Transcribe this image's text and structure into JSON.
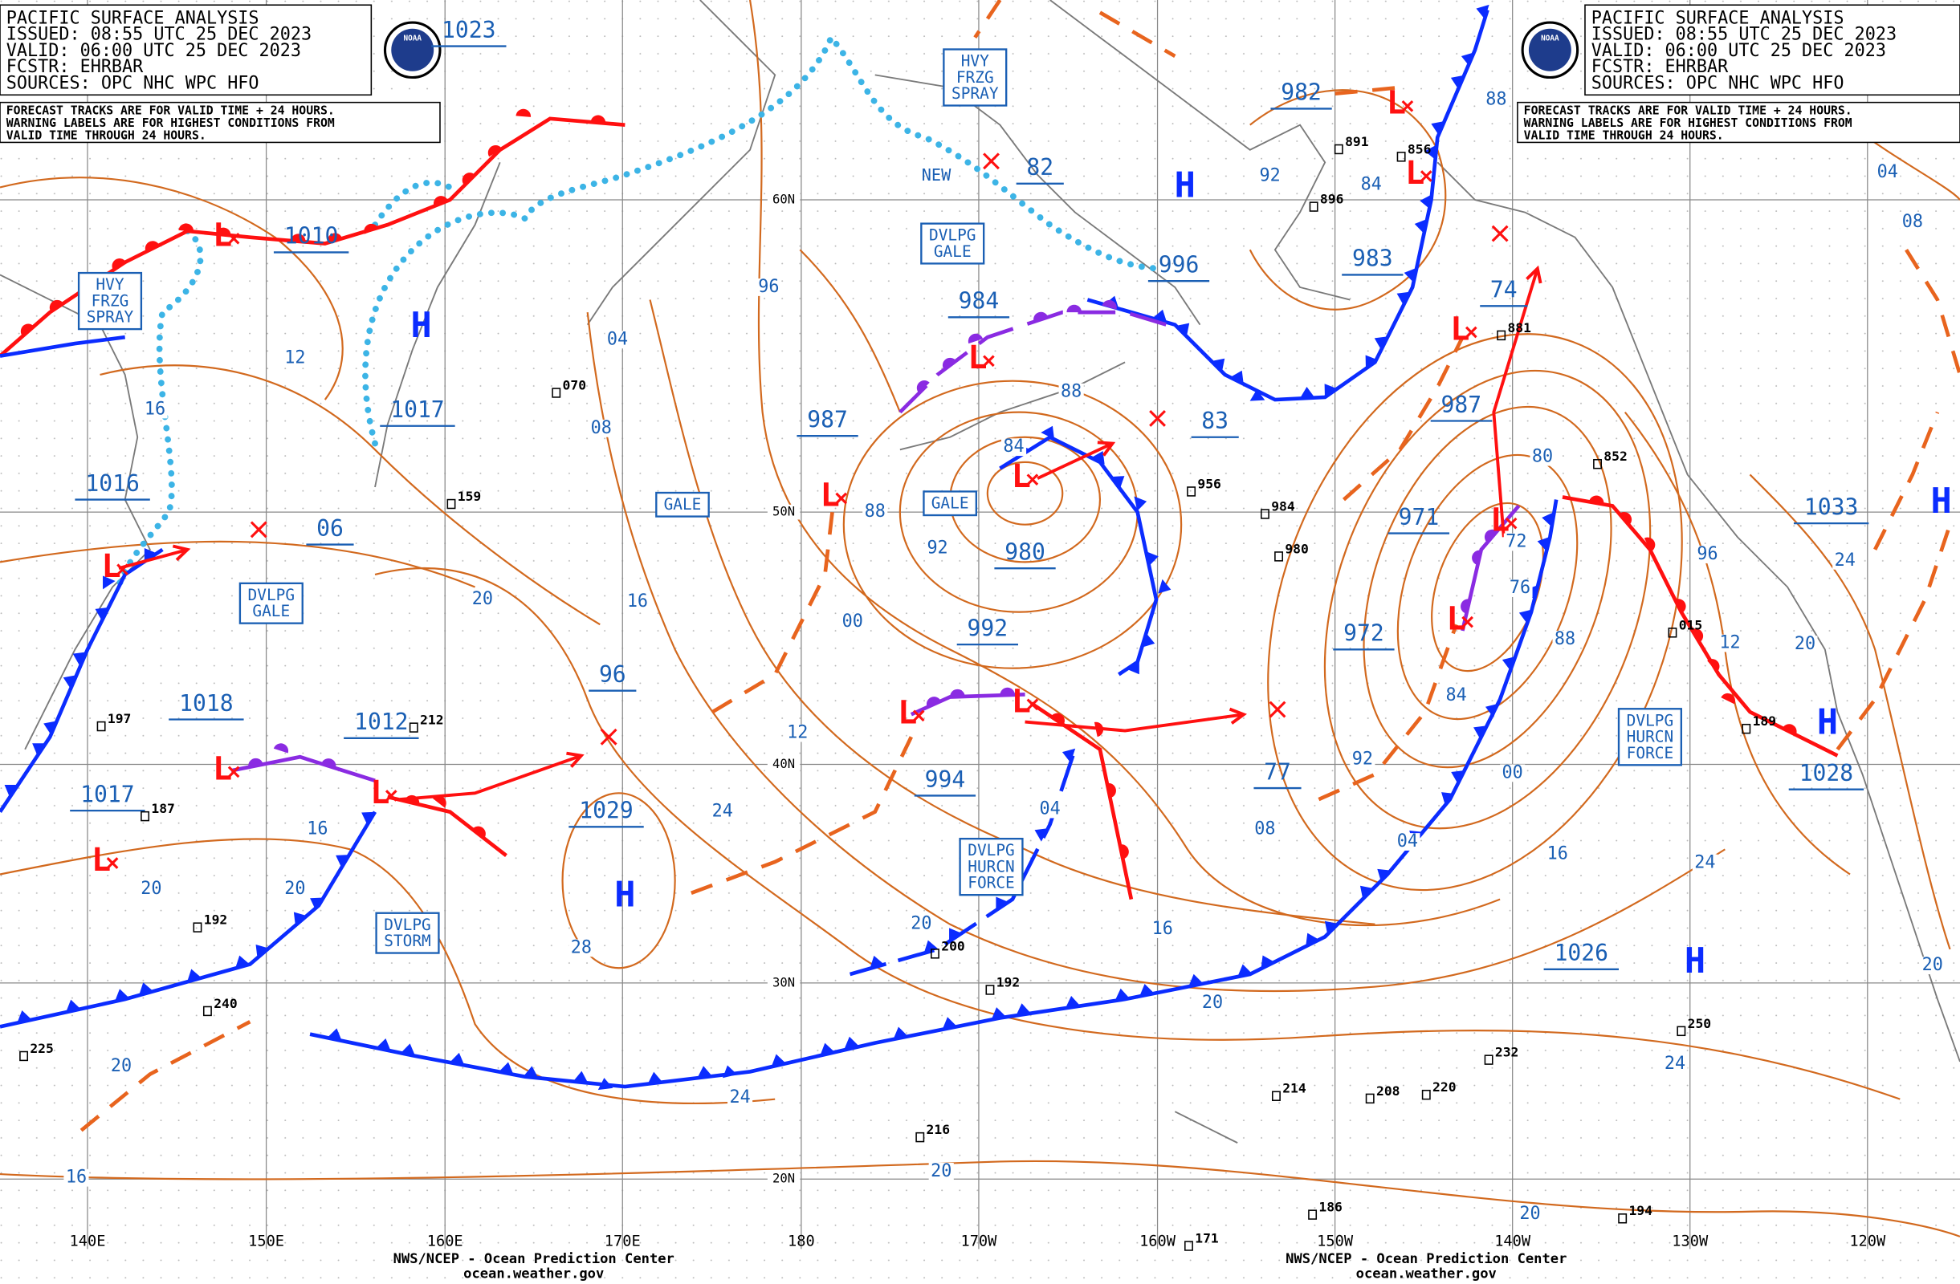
{
  "header_left": {
    "lines": [
      "PACIFIC SURFACE ANALYSIS",
      "ISSUED: 08:55 UTC 25 DEC 2023",
      "VALID: 06:00 UTC 25 DEC 2023",
      "FCSTR: EHRBAR",
      "SOURCES: OPC NHC WPC HFO"
    ]
  },
  "header_right": {
    "lines": [
      "PACIFIC SURFACE ANALYSIS",
      "ISSUED: 08:55 UTC 25 DEC 2023",
      "VALID: 06:00 UTC 25 DEC 2023",
      "FCSTR: EHRBAR",
      "SOURCES: OPC NHC WPC HFO"
    ]
  },
  "note_left": {
    "lines": [
      "FORECAST TRACKS ARE FOR VALID TIME + 24 HOURS.",
      "WARNING LABELS ARE FOR HIGHEST CONDITIONS FROM",
      "VALID TIME THROUGH 24 HOURS."
    ]
  },
  "note_right": {
    "lines": [
      "FORECAST TRACKS ARE FOR VALID TIME + 24 HOURS.",
      "WARNING LABELS ARE FOR HIGHEST CONDITIONS FROM",
      "VALID TIME THROUGH 24 HOURS."
    ]
  },
  "logo_text": [
    "NOAA",
    "NOAA"
  ],
  "latitude_labels": [
    "60N",
    "50N",
    "40N",
    "30N",
    "20N"
  ],
  "longitude_labels": [
    "140E",
    "150E",
    "160E",
    "170E",
    "180",
    "170W",
    "160W",
    "150W",
    "140W",
    "130W",
    "120W"
  ],
  "pressure_labels": [
    "1023",
    "1010",
    "1017",
    "1016",
    "06",
    "1018",
    "1012",
    "1017",
    "96",
    "1029",
    "987",
    "984",
    "982",
    "82",
    "996",
    "983",
    "74",
    "987",
    "83",
    "971",
    "980",
    "992",
    "972",
    "994",
    "77",
    "1033",
    "1028",
    "1026"
  ],
  "warnings": [
    {
      "lines": [
        "HVY",
        "FRZG",
        "SPRAY"
      ]
    },
    {
      "lines": [
        "HVY",
        "FRZG",
        "SPRAY"
      ]
    },
    {
      "lines": [
        "DVLPG",
        "GALE"
      ]
    },
    {
      "lines": [
        "GALE"
      ]
    },
    {
      "lines": [
        "GALE"
      ]
    },
    {
      "lines": [
        "DVLPG",
        "GALE"
      ]
    },
    {
      "lines": [
        "DVLPG",
        "STORM"
      ]
    },
    {
      "lines": [
        "DVLPG",
        "HURCN",
        "FORCE"
      ]
    },
    {
      "lines": [
        "DVLPG",
        "HURCN",
        "FORCE"
      ]
    }
  ],
  "new_label": "NEW",
  "highs": [
    "H",
    "H",
    "H",
    "H",
    "H",
    "H"
  ],
  "lows": [
    "L",
    "L",
    "L",
    "L",
    "L",
    "L",
    "L",
    "L",
    "L",
    "L",
    "L",
    "L",
    "L",
    "L",
    "L"
  ],
  "isobar_labels": [
    "96",
    "04",
    "08",
    "12",
    "16",
    "20",
    "16",
    "00",
    "12",
    "24",
    "16",
    "20",
    "20",
    "28",
    "20",
    "04",
    "88",
    "92",
    "84",
    "88",
    "92",
    "84",
    "80",
    "72",
    "76",
    "88",
    "84",
    "92",
    "00",
    "08",
    "04",
    "16",
    "16",
    "20",
    "24",
    "20",
    "16",
    "20",
    "20",
    "24",
    "24",
    "20",
    "12",
    "96",
    "24",
    "08",
    "04",
    "20",
    "88"
  ],
  "stations": [
    "070",
    "159",
    "956",
    "984",
    "980",
    "852",
    "881",
    "015",
    "189",
    "212",
    "197",
    "187",
    "192",
    "240",
    "225",
    "200",
    "192",
    "216",
    "250",
    "232",
    "220",
    "214",
    "208",
    "186",
    "194",
    "171",
    "891",
    "856",
    "896"
  ],
  "footer": {
    "agency": "NWS/NCEP - Ocean Prediction Center",
    "website": "ocean.weather.gov",
    "agency_right": "NWS/NCEP - Ocean Prediction Center",
    "website_right": "ocean.weather.gov"
  }
}
